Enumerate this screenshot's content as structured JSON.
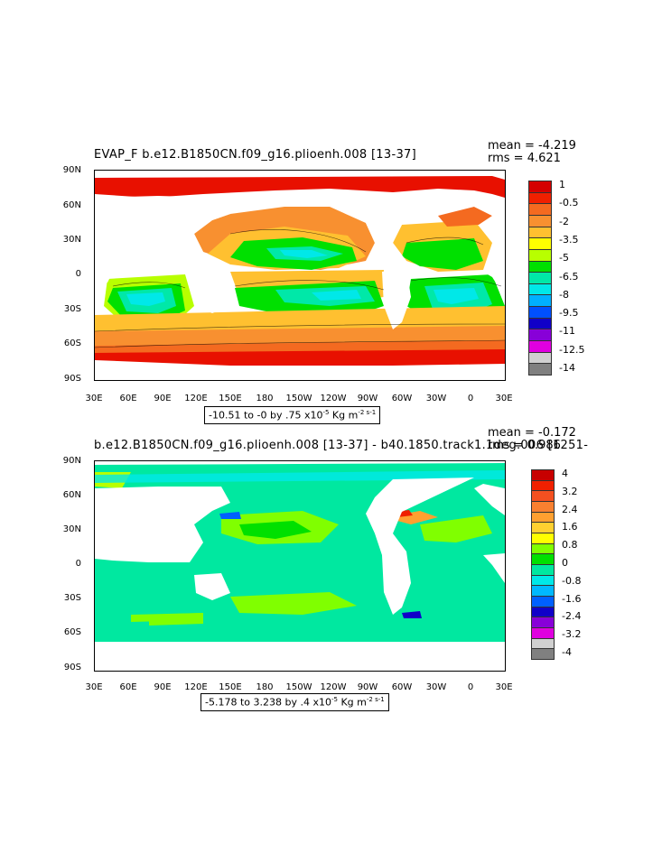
{
  "panel1": {
    "title": "EVAP_F  b.e12.B1850CN.f09_g16.plioenh.008  [13-37]",
    "stats": "mean = -4.219\nrms = 4.621",
    "scale_note": "-10.51 to -0 by .75 x10",
    "scale_exp": "-5",
    "scale_units": " Kg m",
    "scale_units_exp": "-2 s-1",
    "legend_labels": [
      "1",
      "-0.5",
      "-2",
      "-3.5",
      "-5",
      "-6.5",
      "-8",
      "-9.5",
      "-11",
      "-12.5",
      "-14"
    ],
    "legend_colors": [
      "#d40000",
      "#f02000",
      "#f46a20",
      "#f89030",
      "#ffc030",
      "#ffff00",
      "#b8ff00",
      "#00e000",
      "#00e8a8",
      "#00e8e8",
      "#00b0ff",
      "#0050ff",
      "#1000c8",
      "#8800d8",
      "#e000e0",
      "#d0d0d0",
      "#808080"
    ]
  },
  "panel2": {
    "title": "b.e12.B1850CN.f09_g16.plioenh.008 [13-37] - b40.1850.track1.1deg.006 [1251-",
    "stats": "mean = -0.172\nrms = 0.986",
    "scale_note": "-5.178 to 3.238 by .4 x10",
    "scale_exp": "-5",
    "scale_units": " Kg m",
    "scale_units_exp": "-2 s-1",
    "legend_labels": [
      "4",
      "3.2",
      "2.4",
      "1.6",
      "0.8",
      "0",
      "-0.8",
      "-1.6",
      "-2.4",
      "-3.2",
      "-4"
    ],
    "legend_colors": [
      "#c80000",
      "#f02000",
      "#f45020",
      "#f88030",
      "#ffa030",
      "#ffd030",
      "#ffff00",
      "#80ff00",
      "#00e000",
      "#00e8a0",
      "#00e8e8",
      "#00b8ff",
      "#0060ff",
      "#1000c8",
      "#8800d8",
      "#e000e0",
      "#d0d0d0",
      "#808080"
    ]
  },
  "lat_labels": [
    "90N",
    "60N",
    "30N",
    "0",
    "30S",
    "60S",
    "90S"
  ],
  "lon_labels": [
    "30E",
    "60E",
    "90E",
    "120E",
    "150E",
    "180",
    "150W",
    "120W",
    "90W",
    "60W",
    "30W",
    "0",
    "30E"
  ]
}
